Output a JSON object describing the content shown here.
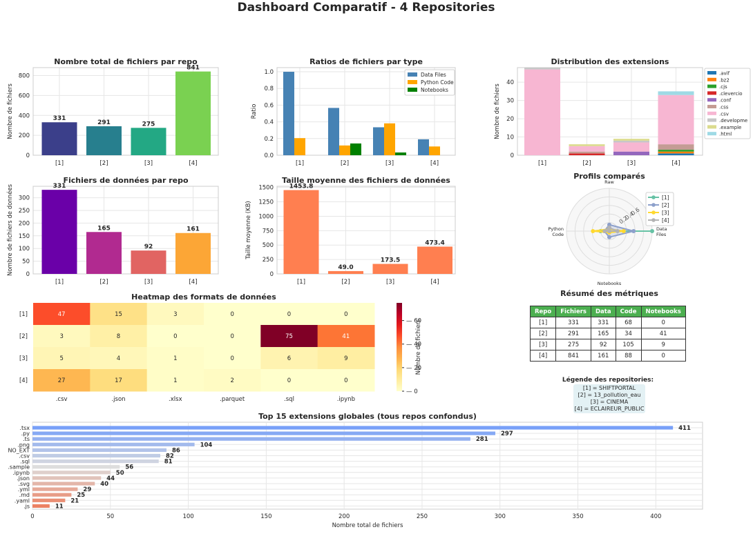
{
  "title": "Dashboard Comparatif - 4 Repositories",
  "colors": {
    "purple": "#3b3f8a",
    "teal": "#277f8e",
    "green": "#23a884",
    "lime": "#7ad151",
    "data_files": "#4682b4",
    "python_code": "#ffa500",
    "notebooks": "#008000",
    "coral": "#ff7f50",
    "table_header": "#4caf50"
  },
  "charts": [
    {
      "type": "bar",
      "title": "Nombre total de fichiers par repo",
      "ylabel": "Nombre de fichiers",
      "categories": [
        "[1]",
        "[2]",
        "[3]",
        "[4]"
      ],
      "values": [
        331,
        291,
        275,
        841
      ],
      "value_labels": [
        "331",
        "291",
        "275",
        "841"
      ],
      "bar_colors": [
        "#3b3f8a",
        "#277f8e",
        "#23a884",
        "#7ad151"
      ],
      "ylim": [
        0,
        880
      ],
      "yticks": [
        0,
        200,
        400,
        600,
        800
      ]
    },
    {
      "type": "grouped_bar",
      "title": "Ratios de fichiers par type",
      "ylabel": "Ratio",
      "categories": [
        "[1]",
        "[2]",
        "[3]",
        "[4]"
      ],
      "series": [
        {
          "name": "Data Files",
          "color": "#4682b4",
          "values": [
            1.0,
            0.567,
            0.335,
            0.191
          ]
        },
        {
          "name": "Python Code",
          "color": "#ffa500",
          "values": [
            0.205,
            0.117,
            0.382,
            0.105
          ]
        },
        {
          "name": "Notebooks",
          "color": "#008000",
          "values": [
            0.0,
            0.141,
            0.033,
            0.0
          ]
        }
      ],
      "ylim": [
        0,
        1.05
      ],
      "yticks": [
        0.0,
        0.2,
        0.4,
        0.6,
        0.8,
        1.0
      ],
      "ytick_labels": [
        "0.0",
        "0.2",
        "0.4",
        "0.6",
        "0.8",
        "1.0"
      ]
    },
    {
      "type": "stacked_bar",
      "title": "Distribution des extensions",
      "ylabel": "Nombre de fichiers",
      "categories": [
        "[1]",
        "[2]",
        "[3]",
        "[4]"
      ],
      "series": [
        {
          "name": ".avif",
          "color": "#1f77b4",
          "values": [
            0,
            0,
            0,
            1
          ]
        },
        {
          "name": ".bz2",
          "color": "#ff7f0e",
          "values": [
            0,
            0,
            0,
            1
          ]
        },
        {
          "name": ".cjs",
          "color": "#2ca02c",
          "values": [
            0,
            0,
            0,
            1
          ]
        },
        {
          "name": ".clevercio",
          "color": "#d62728",
          "values": [
            0,
            1,
            0,
            0
          ]
        },
        {
          "name": ".conf",
          "color": "#9467bd",
          "values": [
            0,
            0,
            2,
            0
          ]
        },
        {
          "name": ".css",
          "color": "#c49c94",
          "values": [
            0,
            1,
            0,
            3
          ]
        },
        {
          "name": ".csv",
          "color": "#f7b6d2",
          "values": [
            47,
            3,
            5,
            27
          ]
        },
        {
          "name": ".developme",
          "color": "#c7c7c7",
          "values": [
            1,
            0,
            1,
            0
          ]
        },
        {
          "name": ".example",
          "color": "#dbdb8d",
          "values": [
            0,
            1,
            1,
            0
          ]
        },
        {
          "name": ".html",
          "color": "#9edae5",
          "values": [
            0,
            0,
            0,
            2
          ]
        }
      ],
      "ylim": [
        0,
        48
      ],
      "yticks": [
        0,
        10,
        20,
        30,
        40
      ]
    },
    {
      "type": "bar",
      "title": "Fichiers de données par repo",
      "ylabel": "Nombre de fichiers de données",
      "categories": [
        "[1]",
        "[2]",
        "[3]",
        "[4]"
      ],
      "values": [
        331,
        165,
        92,
        161
      ],
      "value_labels": [
        "331",
        "165",
        "92",
        "161"
      ],
      "bar_colors": [
        "#6a00a8",
        "#b12a90",
        "#e16462",
        "#fca636"
      ],
      "ylim": [
        0,
        345
      ],
      "yticks": [
        0,
        50,
        100,
        150,
        200,
        250,
        300
      ]
    },
    {
      "type": "bar",
      "title": "Taille moyenne des fichiers de données",
      "ylabel": "Taille moyenne (KB)",
      "categories": [
        "[1]",
        "[2]",
        "[3]",
        "[4]"
      ],
      "values": [
        1453.8,
        49.0,
        173.5,
        473.4
      ],
      "value_labels": [
        "1453.8",
        "49.0",
        "173.5",
        "473.4"
      ],
      "bar_colors": [
        "#ff7f50",
        "#ff7f50",
        "#ff7f50",
        "#ff7f50"
      ],
      "ylim": [
        0,
        1520
      ],
      "yticks": [
        0,
        250,
        500,
        750,
        1000,
        1250,
        1500
      ]
    },
    {
      "type": "radar",
      "title": "Profils comparés",
      "axes": [
        "Raw",
        "Data Files",
        "Notebooks",
        "Python Code"
      ],
      "axis_labels": [
        "Raw",
        "Data\nFiles",
        "Notebooks",
        "Python\nCode"
      ],
      "rlabels": [
        "0.2",
        "0.4",
        "0.6"
      ],
      "rticks": [
        0.2,
        0.4,
        0.6
      ],
      "series": [
        {
          "name": "[1]",
          "color": "#66c2a5",
          "values": [
            0.0,
            1.0,
            0.0,
            0.205
          ]
        },
        {
          "name": "[2]",
          "color": "#8da0cb",
          "values": [
            0.15,
            0.567,
            0.141,
            0.117
          ]
        },
        {
          "name": "[3]",
          "color": "#ffd92f",
          "values": [
            0.05,
            0.335,
            0.033,
            0.382
          ]
        },
        {
          "name": "[4]",
          "color": "#b3b3b3",
          "values": [
            0.08,
            0.191,
            0.0,
            0.105
          ]
        }
      ]
    },
    {
      "type": "heatmap",
      "title": "Heatmap des formats de données",
      "rows": [
        "[1]",
        "[2]",
        "[3]",
        "[4]"
      ],
      "cols": [
        ".csv",
        ".json",
        ".xlsx",
        ".parquet",
        ".sql",
        ".ipynb"
      ],
      "values": [
        [
          47,
          15,
          3,
          0,
          0,
          0
        ],
        [
          3,
          8,
          0,
          0,
          75,
          41
        ],
        [
          5,
          4,
          1,
          0,
          6,
          9
        ],
        [
          27,
          17,
          1,
          2,
          0,
          0
        ]
      ],
      "colorbar_label": "Nombre de fichiers",
      "colorbar_ticks": [
        0,
        20,
        40,
        60
      ],
      "vmax": 75
    },
    {
      "type": "barh",
      "title": "Top 15 extensions globales (tous repos confondus)",
      "xlabel": "Nombre total de fichiers",
      "categories": [
        ".tsx",
        ".py",
        ".ts",
        ".png",
        "NO_EXT",
        ".csv",
        ".sql",
        ".sample",
        ".ipynb",
        ".json",
        ".svg",
        ".yml",
        ".md",
        ".yaml",
        ".js"
      ],
      "values": [
        411,
        297,
        281,
        104,
        86,
        82,
        81,
        56,
        50,
        44,
        40,
        29,
        25,
        21,
        11
      ],
      "value_labels": [
        "411",
        "297",
        "281",
        "104",
        "86",
        "82",
        "81",
        "56",
        "50",
        "44",
        "40",
        "29",
        "25",
        "21",
        "11"
      ],
      "xlim": [
        0,
        430
      ],
      "xticks": [
        0,
        50,
        100,
        150,
        200,
        250,
        300,
        350,
        400
      ]
    }
  ],
  "summary": {
    "title": "Résumé des métriques",
    "headers": [
      "Repo",
      "Fichiers",
      "Data",
      "Code",
      "Notebooks"
    ],
    "rows": [
      [
        "[1]",
        "331",
        "331",
        "68",
        "0"
      ],
      [
        "[2]",
        "291",
        "165",
        "34",
        "41"
      ],
      [
        "[3]",
        "275",
        "92",
        "105",
        "9"
      ],
      [
        "[4]",
        "841",
        "161",
        "88",
        "0"
      ]
    ]
  },
  "repo_legend": {
    "title": "Légende des repositories:",
    "lines": [
      "[1] = SHIFTPORTAL",
      "[2] = 13_pollution_eau",
      "[3] = CINEMA",
      "[4] = ECLAIREUR_PUBLIC"
    ]
  }
}
